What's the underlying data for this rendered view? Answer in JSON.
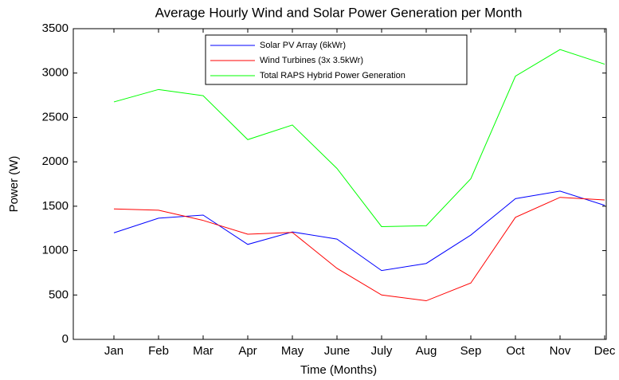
{
  "chart_data": {
    "type": "line",
    "title": "Average Hourly Wind and Solar Power Generation per Month",
    "x_label": "Time (Months)",
    "y_label": "Power (W)",
    "categories": [
      "Jan",
      "Feb",
      "Mar",
      "Apr",
      "May",
      "June",
      "July",
      "Aug",
      "Sep",
      "Oct",
      "Nov",
      "Dec"
    ],
    "series": [
      {
        "name": "Solar PV Array (6kWr)",
        "color": "#0000ff",
        "values": [
          1200,
          1365,
          1400,
          1070,
          1210,
          1130,
          775,
          855,
          1175,
          1585,
          1670,
          1510
        ]
      },
      {
        "name": "Wind Turbines (3x 3.5kWr)",
        "color": "#ff0000",
        "values": [
          1470,
          1455,
          1340,
          1185,
          1205,
          800,
          500,
          435,
          635,
          1375,
          1600,
          1570
        ]
      },
      {
        "name": "Total RAPS Hybrid Power Generation",
        "color": "#00ff00",
        "values": [
          2675,
          2815,
          2745,
          2250,
          2415,
          1925,
          1270,
          1280,
          1810,
          2965,
          3265,
          3100
        ]
      }
    ],
    "ylim": [
      0,
      3500
    ],
    "yticks": [
      0,
      500,
      1000,
      1500,
      2000,
      2500,
      3000,
      3500
    ],
    "legend": "top"
  }
}
